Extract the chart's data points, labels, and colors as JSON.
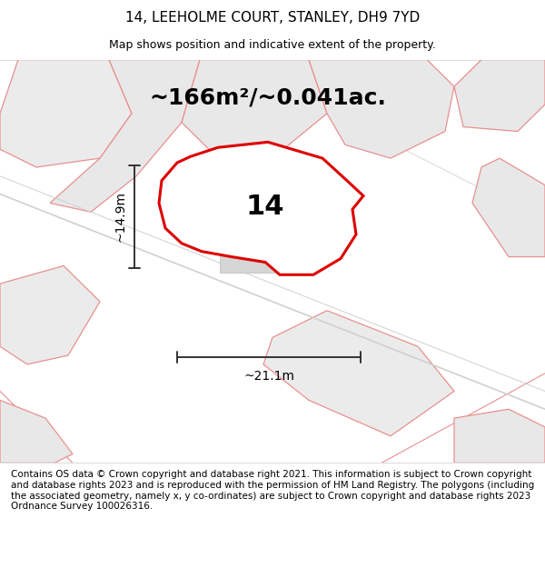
{
  "title": "14, LEEHOLME COURT, STANLEY, DH9 7YD",
  "subtitle": "Map shows position and indicative extent of the property.",
  "area_text": "~166m²/~0.041ac.",
  "label_14": "14",
  "dim_width": "~21.1m",
  "dim_height": "~14.9m",
  "footer": "Contains OS data © Crown copyright and database right 2021. This information is subject to Crown copyright and database rights 2023 and is reproduced with the permission of HM Land Registry. The polygons (including the associated geometry, namely x, y co-ordinates) are subject to Crown copyright and database rights 2023 Ordnance Survey 100026316.",
  "bg_color": "#ffffff",
  "map_bg": "#ececec",
  "plot_color": "#dd0000",
  "plot_fill": "#ffffff",
  "other_plot_color": "#e89090",
  "road_color": "#d0d0d0",
  "title_fontsize": 11,
  "subtitle_fontsize": 9,
  "area_fontsize": 18,
  "label_fontsize": 22,
  "footer_fontsize": 7.5
}
